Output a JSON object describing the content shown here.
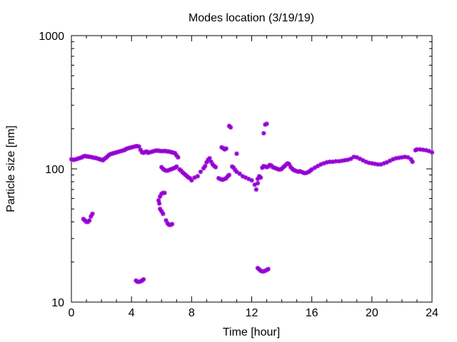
{
  "chart_data": {
    "type": "scatter",
    "title": "Modes location (3/19/19)",
    "xlabel": "Time [hour]",
    "ylabel": "Particle size [nm]",
    "xlim": [
      0,
      24
    ],
    "ylim": [
      10,
      1000
    ],
    "yscale": "log",
    "xticks": [
      0,
      4,
      8,
      12,
      16,
      20,
      24
    ],
    "xtick_labels": [
      "0",
      "4",
      "8",
      "12",
      "16",
      "20",
      "24"
    ],
    "yticks": [
      10,
      100,
      1000
    ],
    "ytick_labels": [
      "10",
      "100",
      "1000"
    ],
    "grid": false,
    "legend": "none",
    "marker_color": "#9400d3",
    "series": [
      {
        "points": [
          [
            0.0,
            118
          ],
          [
            0.1,
            117
          ],
          [
            0.2,
            117
          ],
          [
            0.3,
            118
          ],
          [
            0.4,
            119
          ],
          [
            0.5,
            120
          ],
          [
            0.6,
            121
          ],
          [
            0.7,
            122
          ],
          [
            0.8,
            124
          ],
          [
            0.9,
            125
          ],
          [
            1.0,
            124
          ],
          [
            1.1,
            124
          ],
          [
            1.2,
            123
          ],
          [
            1.3,
            123
          ],
          [
            1.4,
            122
          ],
          [
            1.5,
            121
          ],
          [
            1.6,
            121
          ],
          [
            1.7,
            120
          ],
          [
            1.8,
            119
          ],
          [
            1.9,
            118
          ],
          [
            2.0,
            117
          ],
          [
            2.1,
            116
          ],
          [
            2.2,
            119
          ],
          [
            2.3,
            121
          ],
          [
            2.4,
            124
          ],
          [
            2.5,
            127
          ],
          [
            2.6,
            129
          ],
          [
            2.7,
            130
          ],
          [
            2.8,
            131
          ],
          [
            2.9,
            132
          ],
          [
            3.0,
            133
          ],
          [
            3.1,
            134
          ],
          [
            3.2,
            135
          ],
          [
            3.3,
            136
          ],
          [
            3.4,
            137
          ],
          [
            3.5,
            138
          ],
          [
            3.6,
            140
          ],
          [
            3.7,
            142
          ],
          [
            3.8,
            143
          ],
          [
            3.9,
            144
          ],
          [
            4.0,
            145
          ],
          [
            4.1,
            146
          ],
          [
            4.2,
            147
          ],
          [
            4.3,
            148
          ],
          [
            4.4,
            148
          ],
          [
            4.5,
            147
          ],
          [
            4.6,
            139
          ],
          [
            4.7,
            133
          ],
          [
            4.8,
            132
          ],
          [
            4.9,
            134
          ],
          [
            5.0,
            135
          ],
          [
            5.1,
            132
          ],
          [
            5.2,
            133
          ],
          [
            5.3,
            134
          ],
          [
            5.4,
            135
          ],
          [
            5.5,
            136
          ],
          [
            5.6,
            137
          ],
          [
            5.7,
            137
          ],
          [
            5.8,
            137
          ],
          [
            5.9,
            136
          ],
          [
            6.0,
            136
          ],
          [
            6.1,
            136
          ],
          [
            6.2,
            136
          ],
          [
            6.3,
            136
          ],
          [
            6.4,
            135
          ],
          [
            6.5,
            135
          ],
          [
            6.6,
            134
          ],
          [
            6.7,
            133
          ],
          [
            6.8,
            132
          ],
          [
            6.9,
            131
          ],
          [
            7.0,
            126
          ],
          [
            7.1,
            122
          ],
          [
            6.0,
            103
          ],
          [
            6.1,
            100
          ],
          [
            6.2,
            98
          ],
          [
            6.3,
            97
          ],
          [
            6.4,
            97
          ],
          [
            6.5,
            98
          ],
          [
            6.6,
            99
          ],
          [
            6.7,
            100
          ],
          [
            6.8,
            101
          ],
          [
            6.9,
            102
          ],
          [
            7.0,
            104
          ],
          [
            7.2,
            99
          ],
          [
            7.3,
            97
          ],
          [
            7.4,
            94
          ],
          [
            7.5,
            92
          ],
          [
            7.6,
            90
          ],
          [
            7.7,
            88
          ],
          [
            7.8,
            86
          ],
          [
            7.9,
            85
          ],
          [
            8.0,
            82
          ],
          [
            8.2,
            86
          ],
          [
            8.4,
            88
          ],
          [
            8.6,
            95
          ],
          [
            8.8,
            101
          ],
          [
            8.9,
            105
          ],
          [
            9.0,
            112
          ],
          [
            9.1,
            117
          ],
          [
            9.2,
            120
          ],
          [
            9.3,
            113
          ],
          [
            9.4,
            108
          ],
          [
            9.5,
            105
          ],
          [
            9.6,
            103
          ],
          [
            9.8,
            85
          ],
          [
            9.9,
            84
          ],
          [
            10.0,
            83
          ],
          [
            10.1,
            83
          ],
          [
            10.2,
            84
          ],
          [
            10.3,
            85
          ],
          [
            10.4,
            88
          ],
          [
            10.5,
            90
          ],
          [
            10.0,
            145
          ],
          [
            10.1,
            143
          ],
          [
            10.2,
            140
          ],
          [
            10.3,
            142
          ],
          [
            10.7,
            104
          ],
          [
            10.8,
            102
          ],
          [
            10.9,
            98
          ],
          [
            11.0,
            95
          ],
          [
            11.2,
            92
          ],
          [
            11.4,
            88
          ],
          [
            11.6,
            86
          ],
          [
            11.8,
            84
          ],
          [
            12.0,
            82
          ],
          [
            12.2,
            76
          ],
          [
            12.3,
            70
          ],
          [
            12.4,
            84
          ],
          [
            12.5,
            88
          ],
          [
            12.6,
            86
          ],
          [
            12.7,
            102
          ],
          [
            12.8,
            105
          ],
          [
            12.9,
            104
          ],
          [
            13.0,
            103
          ],
          [
            13.1,
            104
          ],
          [
            13.2,
            107
          ],
          [
            13.3,
            106
          ],
          [
            13.4,
            103
          ],
          [
            13.5,
            102
          ],
          [
            13.6,
            101
          ],
          [
            13.7,
            100
          ],
          [
            13.8,
            99
          ],
          [
            13.9,
            99
          ],
          [
            14.0,
            100
          ],
          [
            14.1,
            103
          ],
          [
            14.2,
            105
          ],
          [
            14.3,
            108
          ],
          [
            14.4,
            110
          ],
          [
            14.5,
            108
          ],
          [
            14.6,
            103
          ],
          [
            14.7,
            100
          ],
          [
            14.8,
            98
          ],
          [
            14.9,
            97
          ],
          [
            15.0,
            96
          ],
          [
            15.1,
            95
          ],
          [
            15.2,
            96
          ],
          [
            15.3,
            95
          ],
          [
            15.4,
            94
          ],
          [
            15.5,
            93
          ],
          [
            15.6,
            93
          ],
          [
            15.7,
            94
          ],
          [
            15.8,
            95
          ],
          [
            15.9,
            97
          ],
          [
            16.0,
            99
          ],
          [
            16.2,
            102
          ],
          [
            16.4,
            105
          ],
          [
            16.6,
            108
          ],
          [
            16.8,
            110
          ],
          [
            17.0,
            112
          ],
          [
            17.2,
            113
          ],
          [
            17.4,
            113
          ],
          [
            17.6,
            114
          ],
          [
            17.8,
            114
          ],
          [
            18.0,
            115
          ],
          [
            18.2,
            116
          ],
          [
            18.4,
            117
          ],
          [
            18.6,
            119
          ],
          [
            18.8,
            123
          ],
          [
            19.0,
            122
          ],
          [
            19.2,
            119
          ],
          [
            19.4,
            116
          ],
          [
            19.6,
            113
          ],
          [
            19.8,
            111
          ],
          [
            20.0,
            110
          ],
          [
            20.2,
            109
          ],
          [
            20.4,
            108
          ],
          [
            20.6,
            108
          ],
          [
            20.8,
            110
          ],
          [
            21.0,
            112
          ],
          [
            21.2,
            115
          ],
          [
            21.4,
            118
          ],
          [
            21.6,
            120
          ],
          [
            21.8,
            121
          ],
          [
            22.0,
            122
          ],
          [
            22.2,
            123
          ],
          [
            22.4,
            122
          ],
          [
            22.6,
            118
          ],
          [
            22.7,
            113
          ],
          [
            22.9,
            138
          ],
          [
            23.0,
            140
          ],
          [
            23.2,
            140
          ],
          [
            23.4,
            139
          ],
          [
            23.6,
            138
          ],
          [
            23.8,
            136
          ],
          [
            24.0,
            133
          ],
          [
            11.0,
            130
          ],
          [
            12.4,
            78
          ],
          [
            10.5,
            210
          ],
          [
            10.6,
            205
          ],
          [
            12.8,
            185
          ],
          [
            12.9,
            215
          ],
          [
            13.0,
            218
          ],
          [
            0.8,
            42
          ],
          [
            0.9,
            41
          ],
          [
            1.0,
            40
          ],
          [
            1.1,
            40
          ],
          [
            1.2,
            41
          ],
          [
            1.3,
            44
          ],
          [
            1.4,
            46
          ],
          [
            5.8,
            58
          ],
          [
            5.9,
            62
          ],
          [
            6.0,
            65
          ],
          [
            6.1,
            66
          ],
          [
            6.2,
            66
          ],
          [
            5.85,
            55
          ],
          [
            5.9,
            50
          ],
          [
            6.0,
            48
          ],
          [
            6.1,
            46
          ],
          [
            6.3,
            41
          ],
          [
            6.4,
            39
          ],
          [
            6.5,
            38
          ],
          [
            6.6,
            38
          ],
          [
            6.7,
            38.5
          ],
          [
            4.3,
            14.5
          ],
          [
            4.4,
            14.2
          ],
          [
            4.5,
            14.2
          ],
          [
            4.6,
            14.3
          ],
          [
            4.7,
            14.5
          ],
          [
            4.8,
            14.8
          ],
          [
            12.4,
            18.0
          ],
          [
            12.5,
            17.6
          ],
          [
            12.6,
            17.2
          ],
          [
            12.7,
            17.0
          ],
          [
            12.8,
            17.0
          ],
          [
            12.9,
            17.2
          ],
          [
            13.0,
            17.4
          ],
          [
            13.1,
            17.7
          ]
        ]
      }
    ]
  }
}
